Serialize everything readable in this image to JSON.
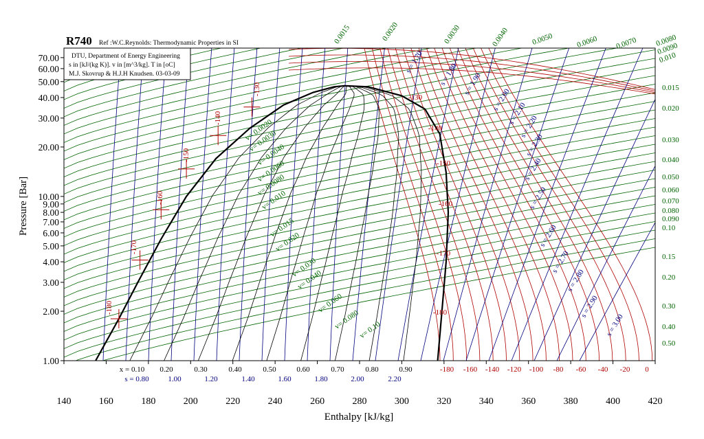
{
  "chart_data": {
    "type": "line",
    "title": "R740",
    "subtitle": "Ref :W.C.Reynolds: Thermodynamic Properties in SI",
    "info_lines": [
      "DTU, Department of Energy Engineering",
      "s in [kJ/(kg K)]. v in [m^3/kg]. T in [oC]",
      "M.J. Skovrup & H.J.H Knudsen. 03-03-09"
    ],
    "xlabel": "Enthalpy [kJ/kg]",
    "ylabel": "Pressure [Bar]",
    "xlim": [
      140,
      420
    ],
    "ylim": [
      1,
      80
    ],
    "y_scale": "log",
    "x_ticks": [
      "140",
      "160",
      "180",
      "200",
      "220",
      "240",
      "260",
      "280",
      "300",
      "320",
      "340",
      "360",
      "380",
      "400",
      "420"
    ],
    "y_ticks": [
      "1.00",
      "2.00",
      "3.00",
      "4.00",
      "5.00",
      "6.00",
      "7.00",
      "8.00",
      "9.00",
      "10.00",
      "20.00",
      "30.00",
      "40.00",
      "50.00",
      "60.00",
      "70.00"
    ],
    "quality_labels": [
      "x = 0.10",
      "0.20",
      "0.30",
      "0.40",
      "0.50",
      "0.60",
      "0.70",
      "0.80",
      "0.90"
    ],
    "entropy_bottom_labels": [
      "s = 0.80",
      "1.00",
      "1.20",
      "1.40",
      "1.60",
      "1.80",
      "2.00",
      "2.20"
    ],
    "temperature_bottom_labels": [
      "-180",
      "-160",
      "-140",
      "-120",
      "-100",
      "-80",
      "-60",
      "-40",
      "-20",
      "0"
    ],
    "temperature_liquid_labels": [
      "-180",
      "-170",
      "-160",
      "-150",
      "-140",
      "-130"
    ],
    "temperature_vapor_labels": [
      "-130",
      "-140",
      "-150",
      "-160",
      "-170",
      "-180"
    ],
    "volume_labels_inside": [
      "v= 0.0020",
      "v= 0.0030",
      "v= 0.0040",
      "v= 0.0060",
      "v= 0.0080",
      "v= 0.010",
      "v= 0.015",
      "v= 0.020",
      "v= 0.030",
      "v= 0.040",
      "v= 0.060",
      "v= 0.080",
      "v= 0.10"
    ],
    "volume_labels_top": [
      "0.0015",
      "0.0020",
      "0.0030",
      "0.0040",
      "0.0050",
      "0.0060",
      "0.0070",
      "0.0080",
      "0.0090",
      "0.010"
    ],
    "volume_labels_right": [
      "0.015",
      "0.020",
      "0.030",
      "0.040",
      "0.050",
      "0.060",
      "0.070",
      "0.080",
      "0.090",
      "0.10",
      "0.15",
      "0.20",
      "0.30",
      "0.40",
      "0.50"
    ],
    "entropy_labels_diag": [
      "s = 1.70",
      "s = 1.80",
      "s = 1.90",
      "s = 2.00",
      "s = 2.10",
      "s = 2.20",
      "s = 2.30",
      "s = 2.40",
      "s = 2.50",
      "s = 2.60",
      "s = 2.70",
      "s = 2.80",
      "s = 2.90",
      "s = 3.00"
    ],
    "saturation_dome": {
      "liquid": [
        [
          155,
          1.0
        ],
        [
          166,
          1.8
        ],
        [
          175,
          3.0
        ],
        [
          186,
          5.5
        ],
        [
          198,
          10.0
        ],
        [
          212,
          17.0
        ],
        [
          228,
          26.0
        ],
        [
          244,
          36.0
        ],
        [
          258,
          43.0
        ],
        [
          268,
          46.5
        ],
        [
          273,
          47.2
        ]
      ],
      "vapor": [
        [
          273,
          47.2
        ],
        [
          284,
          46.5
        ],
        [
          300,
          41.0
        ],
        [
          311,
          34.0
        ],
        [
          318,
          24.0
        ],
        [
          321,
          14.0
        ],
        [
          322,
          8.0
        ],
        [
          321,
          4.0
        ],
        [
          319,
          2.0
        ],
        [
          317,
          1.0
        ]
      ]
    },
    "colors": {
      "dome": "#000000",
      "isotherms": "#b00000",
      "isochores": "#006400",
      "isentropes": "#00007f",
      "quality": "#000000",
      "frame": "#000000"
    }
  }
}
